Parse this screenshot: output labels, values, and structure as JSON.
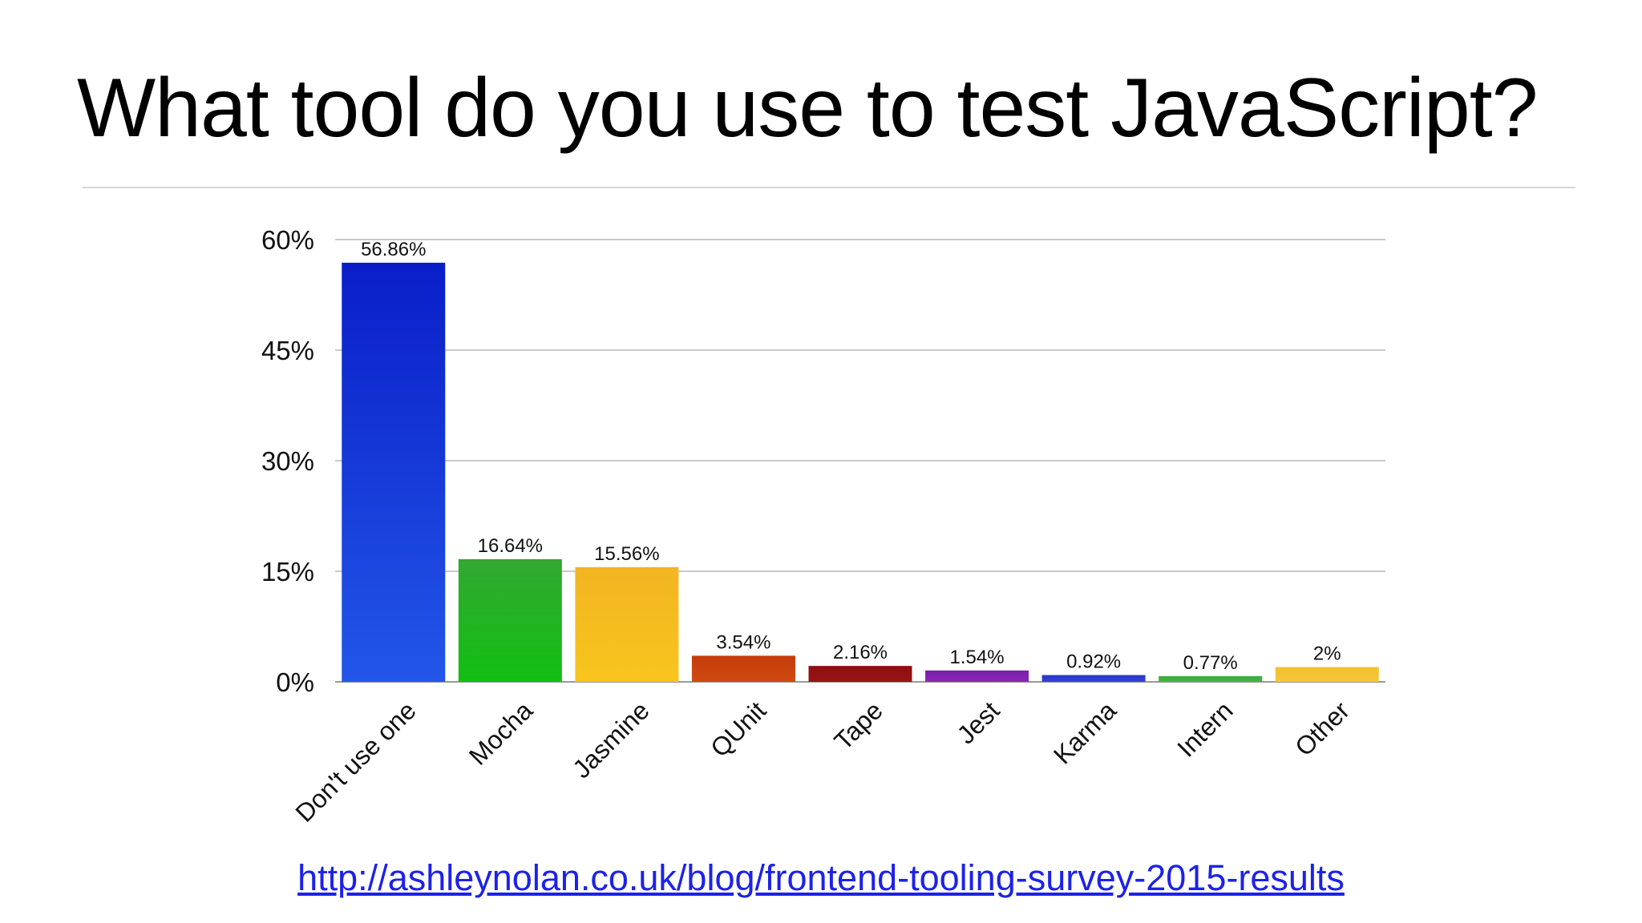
{
  "slide": {
    "title": "What tool do you use to test JavaScript?",
    "source_link": "http://ashleynolan.co.uk/blog/frontend-tooling-survey-2015-results"
  },
  "chart_data": {
    "type": "bar",
    "title": "",
    "xlabel": "",
    "ylabel": "",
    "categories": [
      "Don't use one",
      "Mocha",
      "Jasmine",
      "QUnit",
      "Tape",
      "Jest",
      "Karma",
      "Intern",
      "Other"
    ],
    "values": [
      56.86,
      16.64,
      15.56,
      3.54,
      2.16,
      1.54,
      0.92,
      0.77,
      2
    ],
    "value_labels": [
      "56.86%",
      "16.64%",
      "15.56%",
      "3.54%",
      "2.16%",
      "1.54%",
      "0.92%",
      "0.77%",
      "2%"
    ],
    "y_ticks": [
      0,
      15,
      30,
      45,
      60
    ],
    "y_tick_labels": [
      "0%",
      "15%",
      "30%",
      "45%",
      "60%"
    ],
    "ylim": [
      0,
      60
    ],
    "grid": true,
    "legend": "none",
    "bar_colors": [
      {
        "top": "#0a1ec8",
        "bottom": "#2256e8"
      },
      {
        "top": "#33a832",
        "bottom": "#12bf12"
      },
      {
        "top": "#f2b522",
        "bottom": "#f8c51d"
      },
      {
        "top": "#c43c0a",
        "bottom": "#d04a12"
      },
      {
        "top": "#8c0f0f",
        "bottom": "#9a1414"
      },
      {
        "top": "#7a1ea8",
        "bottom": "#8a28b8"
      },
      {
        "top": "#2a36c8",
        "bottom": "#3442d6"
      },
      {
        "top": "#3aa83a",
        "bottom": "#44b844"
      },
      {
        "top": "#f2c030",
        "bottom": "#f6c63a"
      }
    ]
  }
}
